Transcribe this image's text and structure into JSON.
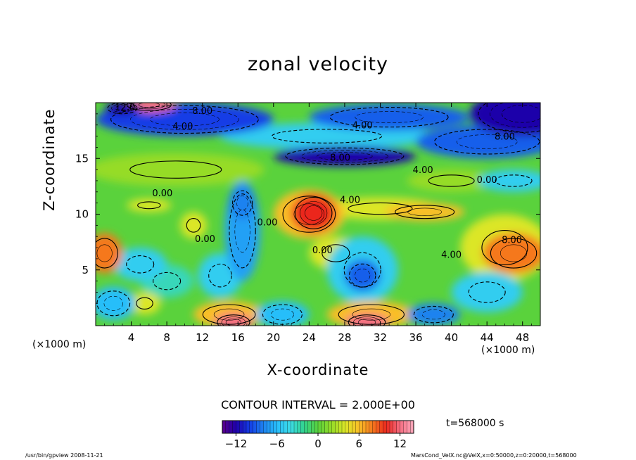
{
  "chart_data": {
    "type": "heatmap",
    "title": "zonal velocity",
    "xlabel": "X-coordinate",
    "ylabel": "Z-coordinate",
    "x_unit_left": "(×1000 m)",
    "x_unit_right": "(×1000 m)",
    "xlim": [
      0,
      50
    ],
    "ylim": [
      0,
      20
    ],
    "x_ticks": [
      4,
      8,
      12,
      16,
      20,
      24,
      28,
      32,
      36,
      40,
      44,
      48
    ],
    "y_ticks": [
      5,
      10,
      15
    ],
    "contour_interval": "CONTOUR INTERVAL = 2.000E+00",
    "colorbar": {
      "min": -14,
      "max": 14,
      "tick_labels": [
        -12,
        -6,
        0,
        6,
        12
      ]
    },
    "time_label": "t=568000 s",
    "contour_labels": [
      {
        "text": "12.0",
        "x": 3.3,
        "y": 19.3
      },
      {
        "text": "8.00",
        "x": 12.0,
        "y": 19.0
      },
      {
        "text": "4.00",
        "x": 9.8,
        "y": 17.6
      },
      {
        "text": "4.00",
        "x": 30.0,
        "y": 17.7
      },
      {
        "text": "8.00",
        "x": 46.0,
        "y": 16.7
      },
      {
        "text": "8.00",
        "x": 27.5,
        "y": 14.8
      },
      {
        "text": "4.00",
        "x": 36.8,
        "y": 13.7
      },
      {
        "text": "0.00",
        "x": 44.0,
        "y": 12.8
      },
      {
        "text": "0.00",
        "x": 7.5,
        "y": 11.6
      },
      {
        "text": "4.00",
        "x": 28.6,
        "y": 11.0
      },
      {
        "text": "0.00",
        "x": 19.3,
        "y": 9.0
      },
      {
        "text": "0.00",
        "x": 12.3,
        "y": 7.5
      },
      {
        "text": "0.00",
        "x": 25.5,
        "y": 6.5
      },
      {
        "text": "4.00",
        "x": 40.0,
        "y": 6.1
      },
      {
        "text": "8.00",
        "x": 46.8,
        "y": 7.4
      }
    ],
    "features": [
      {
        "value": 12,
        "x": 6,
        "y": 19.8,
        "rx": 3,
        "ry": 0.6
      },
      {
        "value": -12,
        "x": 3,
        "y": 19.5,
        "rx": 2,
        "ry": 0.6
      },
      {
        "value": -10,
        "x": 10,
        "y": 18.5,
        "rx": 10,
        "ry": 1.5
      },
      {
        "value": -12,
        "x": 48,
        "y": 19,
        "rx": 6,
        "ry": 2
      },
      {
        "value": -9,
        "x": 33,
        "y": 18.7,
        "rx": 9,
        "ry": 1.2
      },
      {
        "value": -9,
        "x": 44,
        "y": 16.5,
        "rx": 8,
        "ry": 1.5
      },
      {
        "value": -12,
        "x": 28,
        "y": 15.2,
        "rx": 8,
        "ry": 0.9
      },
      {
        "value": -5,
        "x": 26,
        "y": 17,
        "rx": 12,
        "ry": 1.2
      },
      {
        "value": -5,
        "x": 47,
        "y": 13,
        "rx": 4,
        "ry": 1
      },
      {
        "value": 10,
        "x": 24.5,
        "y": 10.1,
        "rx": 2.5,
        "ry": 1.7
      },
      {
        "value": 6,
        "x": 24,
        "y": 10,
        "rx": 4,
        "ry": 2.2
      },
      {
        "value": 6,
        "x": 37,
        "y": 10.2,
        "rx": 4.5,
        "ry": 0.8
      },
      {
        "value": 4,
        "x": 32,
        "y": 10.5,
        "rx": 7,
        "ry": 1
      },
      {
        "value": 8,
        "x": 47,
        "y": 6.5,
        "rx": 3.5,
        "ry": 1.8
      },
      {
        "value": 4,
        "x": 46,
        "y": 7,
        "rx": 5,
        "ry": 3
      },
      {
        "value": 8,
        "x": 1,
        "y": 6.5,
        "rx": 2,
        "ry": 1.8
      },
      {
        "value": 4,
        "x": 11,
        "y": 9,
        "rx": 1.5,
        "ry": 1.2
      },
      {
        "value": 4,
        "x": 6,
        "y": 10.8,
        "rx": 2.5,
        "ry": 0.6
      },
      {
        "value": 12,
        "x": 15.5,
        "y": 0.3,
        "rx": 2.2,
        "ry": 0.8
      },
      {
        "value": 6,
        "x": 15,
        "y": 1,
        "rx": 4,
        "ry": 1.2
      },
      {
        "value": 12,
        "x": 30.5,
        "y": 0.3,
        "rx": 2.5,
        "ry": 0.8
      },
      {
        "value": 6,
        "x": 31,
        "y": 1,
        "rx": 5,
        "ry": 1.2
      },
      {
        "value": 4,
        "x": 5.5,
        "y": 2,
        "rx": 1.8,
        "ry": 1
      },
      {
        "value": -9,
        "x": 30,
        "y": 4.5,
        "rx": 2,
        "ry": 1.4
      },
      {
        "value": -5,
        "x": 30,
        "y": 5,
        "rx": 4,
        "ry": 3
      },
      {
        "value": -7,
        "x": 16.5,
        "y": 8.5,
        "rx": 2,
        "ry": 4.5
      },
      {
        "value": -8,
        "x": 16.5,
        "y": 11,
        "rx": 1.5,
        "ry": 1.5
      },
      {
        "value": -5,
        "x": 14,
        "y": 4.5,
        "rx": 2.5,
        "ry": 2
      },
      {
        "value": -5,
        "x": 44,
        "y": 3,
        "rx": 4,
        "ry": 1.8
      },
      {
        "value": -6,
        "x": 2,
        "y": 2,
        "rx": 2.5,
        "ry": 1.5
      },
      {
        "value": -6,
        "x": 21,
        "y": 1,
        "rx": 3,
        "ry": 1.2
      },
      {
        "value": -8,
        "x": 38,
        "y": 1,
        "rx": 3,
        "ry": 1
      },
      {
        "value": -5,
        "x": 5,
        "y": 5.5,
        "rx": 3,
        "ry": 1.5
      },
      {
        "value": 2,
        "x": 9,
        "y": 14,
        "rx": 10,
        "ry": 1.5
      },
      {
        "value": 2,
        "x": 40,
        "y": 13,
        "rx": 5,
        "ry": 1
      },
      {
        "value": 4,
        "x": 27,
        "y": 6.5,
        "rx": 3,
        "ry": 1.5
      },
      {
        "value": -3,
        "x": 8,
        "y": 4,
        "rx": 3,
        "ry": 1.5
      }
    ],
    "background_value": 0
  },
  "footer": {
    "left": "/usr/bin/gpview   2008-11-21",
    "right": "MarsCond_VelX.nc@VelX,x=0:50000,z=0:20000,t=568000"
  }
}
